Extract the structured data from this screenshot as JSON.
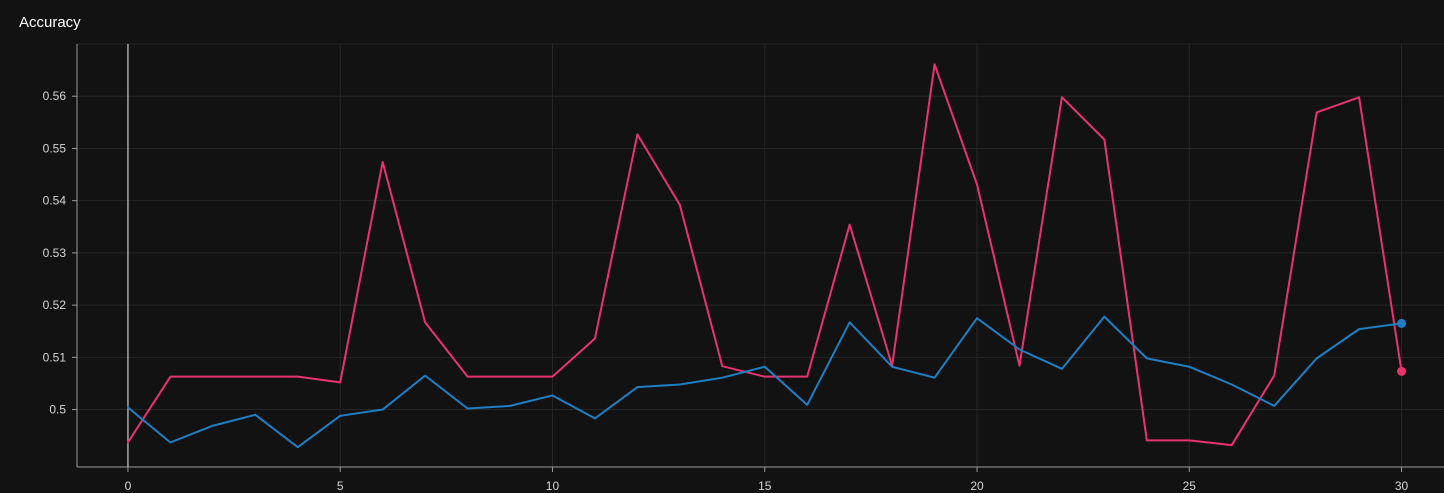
{
  "header": {
    "title": "Accuracy"
  },
  "colors": {
    "background": "#121212",
    "grid": "#262626",
    "axis": "#9a9a9a",
    "ticks_text": "#d6d6d6",
    "series_pink": "#e8336e",
    "series_blue": "#1f7fc4"
  },
  "chart_data": {
    "type": "line",
    "title": "Accuracy",
    "xlabel": "",
    "ylabel": "",
    "x": [
      0,
      1,
      2,
      3,
      4,
      5,
      6,
      7,
      8,
      9,
      10,
      11,
      12,
      13,
      14,
      15,
      16,
      17,
      18,
      19,
      20,
      21,
      22,
      23,
      24,
      25,
      26,
      27,
      28,
      29,
      30
    ],
    "xlim": [
      -1.2,
      31
    ],
    "ylim": [
      0.489,
      0.57
    ],
    "x_ticks": [
      0,
      5,
      10,
      15,
      20,
      25,
      30
    ],
    "y_ticks": [
      0.5,
      0.51,
      0.52,
      0.53,
      0.54,
      0.55,
      0.56
    ],
    "y_tick_labels": [
      "0.5",
      "0.51",
      "0.52",
      "0.53",
      "0.54",
      "0.55",
      "0.56"
    ],
    "grid": true,
    "series": [
      {
        "color": "#e8336e",
        "values": [
          0.4937,
          0.5063,
          0.5063,
          0.5063,
          0.5063,
          0.5052,
          0.5474,
          0.5167,
          0.5063,
          0.5063,
          0.5063,
          0.5136,
          0.5527,
          0.5392,
          0.5083,
          0.5063,
          0.5063,
          0.5354,
          0.5084,
          0.5661,
          0.5431,
          0.5084,
          0.5598,
          0.5517,
          0.4941,
          0.4941,
          0.4932,
          0.5065,
          0.5569,
          0.5598,
          0.5073
        ]
      },
      {
        "color": "#1f7fc4",
        "values": [
          0.5004,
          0.4937,
          0.4969,
          0.499,
          0.4928,
          0.4988,
          0.5,
          0.5065,
          0.5002,
          0.5007,
          0.5027,
          0.4983,
          0.5043,
          0.5048,
          0.5061,
          0.5082,
          0.5009,
          0.5167,
          0.5082,
          0.5061,
          0.5175,
          0.5115,
          0.5078,
          0.5178,
          0.5098,
          0.5082,
          0.5048,
          0.5007,
          0.5098,
          0.5154,
          0.5165
        ]
      }
    ]
  }
}
